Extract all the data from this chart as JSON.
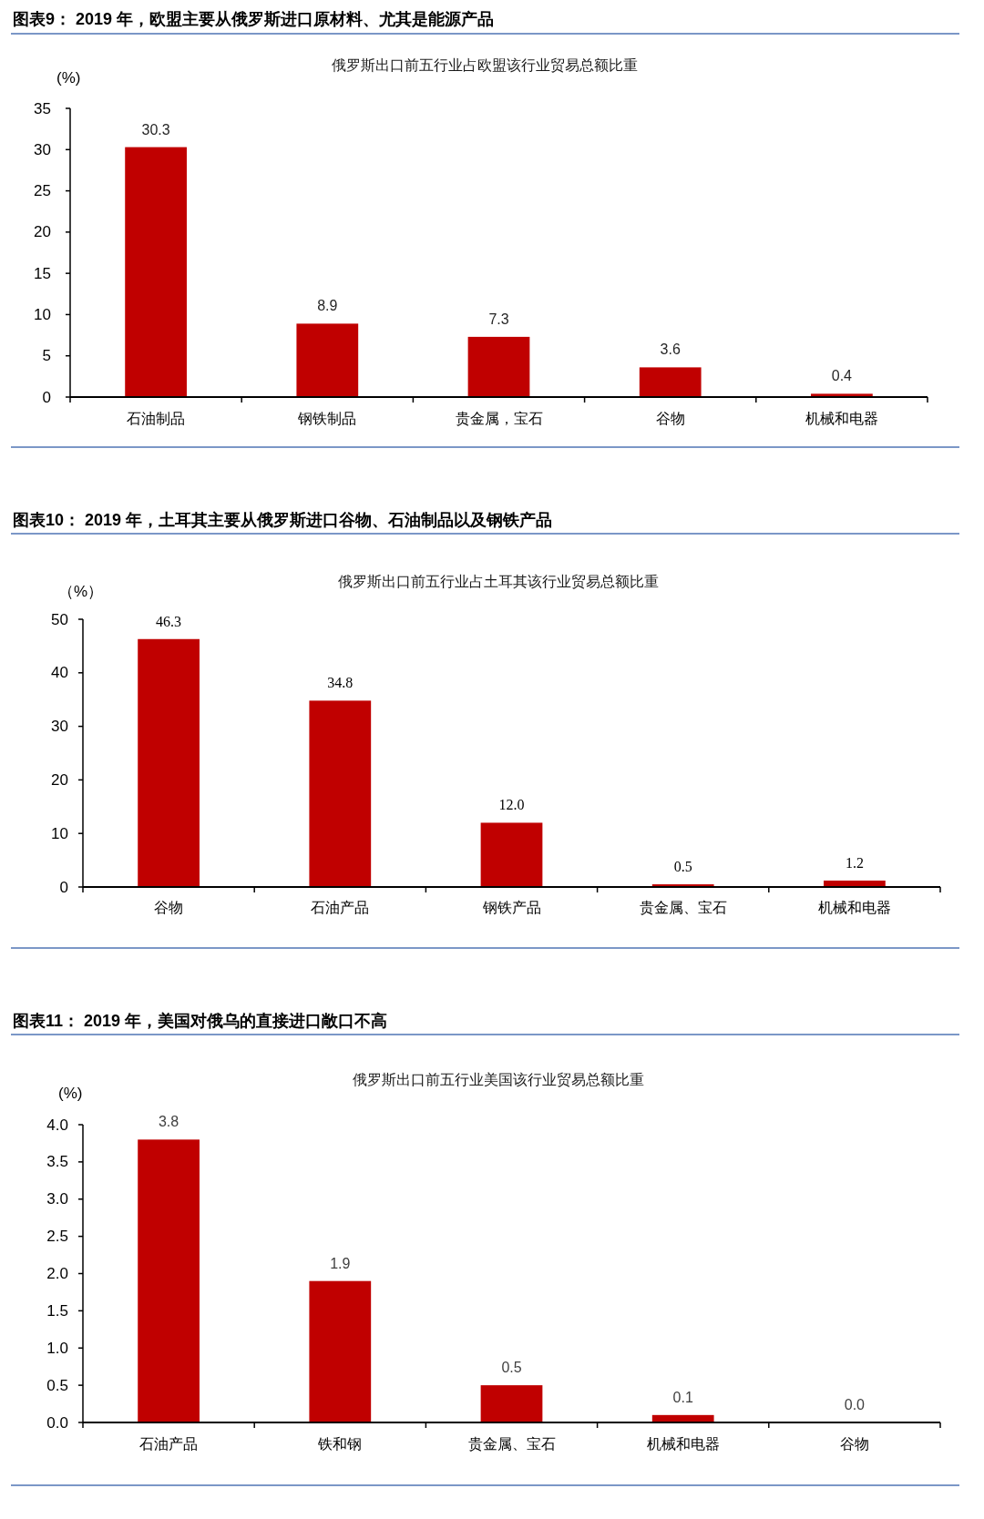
{
  "chart_data": [
    {
      "type": "bar",
      "title": "图表9： 2019 年，欧盟主要从俄罗斯进口原材料、尤其是能源产品",
      "subtitle": "俄罗斯出口前五行业占欧盟该行业贸易总额比重",
      "ylabel": "(%)",
      "categories": [
        "石油制品",
        "钢铁制品",
        "贵金属，宝石",
        "谷物",
        "机械和电器"
      ],
      "values": [
        30.3,
        8.9,
        7.3,
        3.6,
        0.4
      ],
      "value_labels": [
        "30.3",
        "8.9",
        "7.3",
        "3.6",
        "0.4"
      ],
      "color": "#c00000",
      "ylim": [
        0,
        35
      ],
      "yticks": [
        0,
        5,
        10,
        15,
        20,
        25,
        30,
        35
      ]
    },
    {
      "type": "bar",
      "title": "图表10： 2019 年，土耳其主要从俄罗斯进口谷物、石油制品以及钢铁产品",
      "subtitle": "俄罗斯出口前五行业占土耳其该行业贸易总额比重",
      "ylabel": "（%）",
      "categories": [
        "谷物",
        "石油产品",
        "钢铁产品",
        "贵金属、宝石",
        "机械和电器"
      ],
      "values": [
        46.3,
        34.8,
        12.0,
        0.5,
        1.2
      ],
      "value_labels": [
        "46.3",
        "34.8",
        "12.0",
        "0.5",
        "1.2"
      ],
      "color": "#c00000",
      "ylim": [
        0,
        50
      ],
      "yticks": [
        0,
        10,
        20,
        30,
        40,
        50
      ]
    },
    {
      "type": "bar",
      "title": "图表11： 2019 年，美国对俄乌的直接进口敞口不高",
      "subtitle": "俄罗斯出口前五行业美国该行业贸易总额比重",
      "ylabel": "(%)",
      "categories": [
        "石油产品",
        "铁和钢",
        "贵金属、宝石",
        "机械和电器",
        "谷物"
      ],
      "values": [
        3.8,
        1.9,
        0.5,
        0.1,
        0.0
      ],
      "value_labels": [
        "3.8",
        "1.9",
        "0.5",
        "0.1",
        "0.0"
      ],
      "color": "#c00000",
      "ylim": [
        0,
        4
      ],
      "yticks": [
        {
          "value": 0,
          "label": "0.0"
        },
        {
          "value": 0.5,
          "label": "0.5"
        },
        {
          "value": 1,
          "label": "1.0"
        },
        {
          "value": 1.5,
          "label": "1.5"
        },
        {
          "value": 2,
          "label": "2.0"
        },
        {
          "value": 2.5,
          "label": "2.5"
        },
        {
          "value": 3,
          "label": "3.0"
        },
        {
          "value": 3.5,
          "label": "3.5"
        },
        {
          "value": 4,
          "label": "4.0"
        }
      ]
    }
  ]
}
